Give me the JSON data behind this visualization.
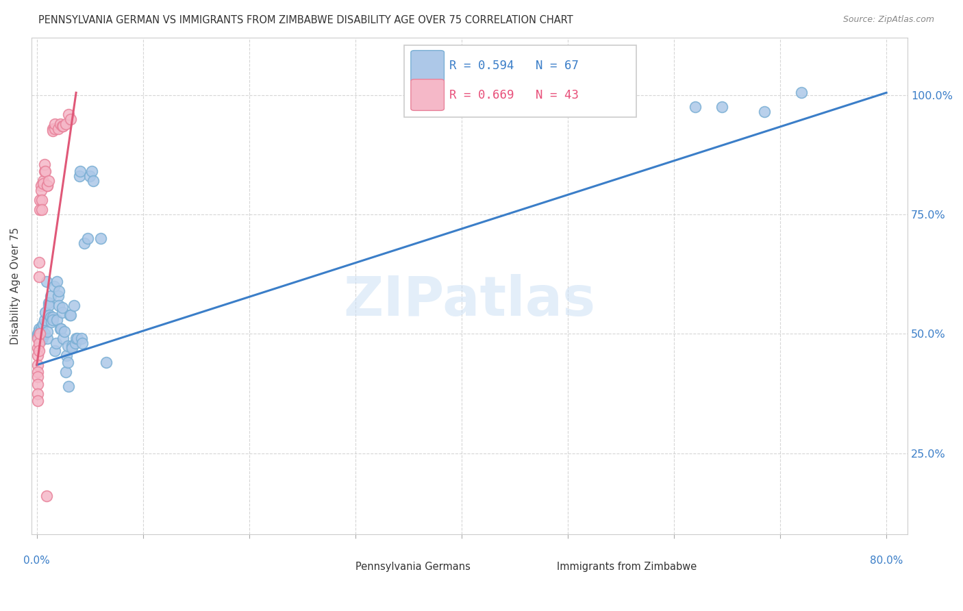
{
  "title": "PENNSYLVANIA GERMAN VS IMMIGRANTS FROM ZIMBABWE DISABILITY AGE OVER 75 CORRELATION CHART",
  "source": "Source: ZipAtlas.com",
  "ylabel": "Disability Age Over 75",
  "blue_color": "#adc8e8",
  "pink_color": "#f5b8c8",
  "blue_edge": "#7aafd4",
  "pink_edge": "#e8829a",
  "blue_line_color": "#3b7ec8",
  "pink_line_color": "#e05878",
  "watermark": "ZIPatlas",
  "blue_scatter": [
    [
      0.001,
      0.5
    ],
    [
      0.002,
      0.51
    ],
    [
      0.001,
      0.495
    ],
    [
      0.002,
      0.505
    ],
    [
      0.003,
      0.5
    ],
    [
      0.003,
      0.495
    ],
    [
      0.004,
      0.498
    ],
    [
      0.004,
      0.503
    ],
    [
      0.005,
      0.488
    ],
    [
      0.005,
      0.515
    ],
    [
      0.006,
      0.52
    ],
    [
      0.006,
      0.495
    ],
    [
      0.007,
      0.53
    ],
    [
      0.007,
      0.5
    ],
    [
      0.008,
      0.545
    ],
    [
      0.009,
      0.61
    ],
    [
      0.01,
      0.49
    ],
    [
      0.01,
      0.505
    ],
    [
      0.011,
      0.565
    ],
    [
      0.011,
      0.56
    ],
    [
      0.012,
      0.54
    ],
    [
      0.013,
      0.58
    ],
    [
      0.013,
      0.535
    ],
    [
      0.014,
      0.525
    ],
    [
      0.015,
      0.535
    ],
    [
      0.015,
      0.53
    ],
    [
      0.016,
      0.6
    ],
    [
      0.017,
      0.465
    ],
    [
      0.018,
      0.48
    ],
    [
      0.019,
      0.61
    ],
    [
      0.019,
      0.53
    ],
    [
      0.02,
      0.58
    ],
    [
      0.021,
      0.59
    ],
    [
      0.021,
      0.56
    ],
    [
      0.022,
      0.51
    ],
    [
      0.023,
      0.51
    ],
    [
      0.024,
      0.545
    ],
    [
      0.024,
      0.555
    ],
    [
      0.025,
      0.49
    ],
    [
      0.026,
      0.505
    ],
    [
      0.027,
      0.42
    ],
    [
      0.028,
      0.455
    ],
    [
      0.029,
      0.475
    ],
    [
      0.029,
      0.44
    ],
    [
      0.03,
      0.39
    ],
    [
      0.031,
      0.54
    ],
    [
      0.032,
      0.54
    ],
    [
      0.033,
      0.475
    ],
    [
      0.033,
      0.47
    ],
    [
      0.035,
      0.56
    ],
    [
      0.036,
      0.48
    ],
    [
      0.037,
      0.49
    ],
    [
      0.038,
      0.49
    ],
    [
      0.04,
      0.83
    ],
    [
      0.041,
      0.84
    ],
    [
      0.042,
      0.49
    ],
    [
      0.043,
      0.48
    ],
    [
      0.045,
      0.69
    ],
    [
      0.048,
      0.7
    ],
    [
      0.05,
      0.83
    ],
    [
      0.052,
      0.84
    ],
    [
      0.053,
      0.82
    ],
    [
      0.06,
      0.7
    ],
    [
      0.065,
      0.44
    ],
    [
      0.62,
      0.975
    ],
    [
      0.645,
      0.975
    ],
    [
      0.685,
      0.965
    ],
    [
      0.72,
      1.005
    ]
  ],
  "pink_scatter": [
    [
      0.001,
      0.49
    ],
    [
      0.001,
      0.47
    ],
    [
      0.001,
      0.455
    ],
    [
      0.001,
      0.435
    ],
    [
      0.001,
      0.42
    ],
    [
      0.001,
      0.41
    ],
    [
      0.001,
      0.395
    ],
    [
      0.001,
      0.375
    ],
    [
      0.001,
      0.36
    ],
    [
      0.002,
      0.48
    ],
    [
      0.002,
      0.465
    ],
    [
      0.002,
      0.62
    ],
    [
      0.002,
      0.65
    ],
    [
      0.003,
      0.78
    ],
    [
      0.003,
      0.76
    ],
    [
      0.003,
      0.5
    ],
    [
      0.004,
      0.81
    ],
    [
      0.004,
      0.8
    ],
    [
      0.005,
      0.78
    ],
    [
      0.005,
      0.76
    ],
    [
      0.006,
      0.82
    ],
    [
      0.006,
      0.815
    ],
    [
      0.007,
      0.84
    ],
    [
      0.007,
      0.855
    ],
    [
      0.008,
      0.84
    ],
    [
      0.009,
      0.16
    ],
    [
      0.01,
      0.81
    ],
    [
      0.01,
      0.81
    ],
    [
      0.011,
      0.82
    ],
    [
      0.015,
      0.93
    ],
    [
      0.015,
      0.925
    ],
    [
      0.017,
      0.93
    ],
    [
      0.017,
      0.94
    ],
    [
      0.02,
      0.93
    ],
    [
      0.022,
      0.94
    ],
    [
      0.024,
      0.935
    ],
    [
      0.025,
      0.935
    ],
    [
      0.027,
      0.94
    ],
    [
      0.03,
      0.96
    ],
    [
      0.032,
      0.95
    ]
  ],
  "blue_line": [
    [
      0.0,
      0.435
    ],
    [
      0.8,
      1.005
    ]
  ],
  "pink_line": [
    [
      0.0,
      0.435
    ],
    [
      0.037,
      1.005
    ]
  ],
  "xmin": -0.005,
  "xmax": 0.82,
  "ymin": 0.08,
  "ymax": 1.12,
  "yticks": [
    0.25,
    0.5,
    0.75,
    1.0
  ],
  "ytick_labels": [
    "25.0%",
    "50.0%",
    "75.0%",
    "100.0%"
  ],
  "xtick_count": 9
}
